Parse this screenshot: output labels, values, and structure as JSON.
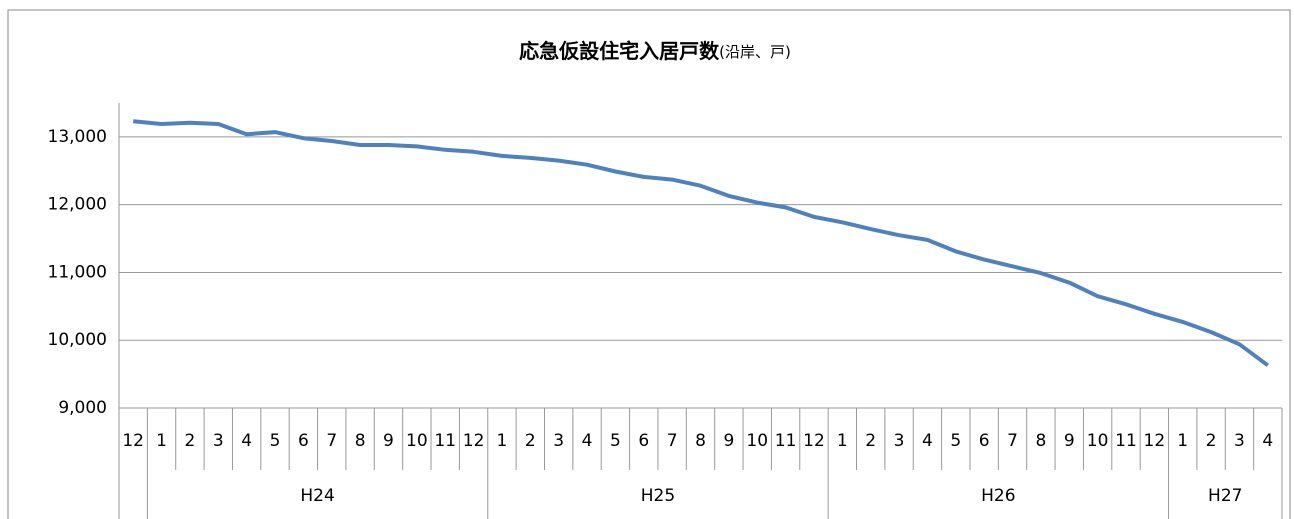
{
  "chart_data": {
    "type": "line",
    "title": "応急仮設住宅入居戸数",
    "title_unit": "(沿岸、戸)",
    "category_groups": [
      {
        "label": null,
        "categories": [
          "12"
        ]
      },
      {
        "label": "H24",
        "categories": [
          "1",
          "2",
          "3",
          "4",
          "5",
          "6",
          "7",
          "8",
          "9",
          "10",
          "11",
          "12"
        ]
      },
      {
        "label": "H25",
        "categories": [
          "1",
          "2",
          "3",
          "4",
          "5",
          "6",
          "7",
          "8",
          "9",
          "10",
          "11",
          "12"
        ]
      },
      {
        "label": "H26",
        "categories": [
          "1",
          "2",
          "3",
          "4",
          "5",
          "6",
          "7",
          "8",
          "9",
          "10",
          "11",
          "12"
        ]
      },
      {
        "label": "H27",
        "categories": [
          "1",
          "2",
          "3",
          "4"
        ]
      }
    ],
    "series": [
      {
        "name": null,
        "color": "#4f81bd",
        "values": [
          13230,
          13190,
          13210,
          13190,
          13040,
          13070,
          12980,
          12940,
          12880,
          12880,
          12860,
          12810,
          12780,
          12720,
          12690,
          12650,
          12590,
          12490,
          12410,
          12370,
          12280,
          12130,
          12030,
          11960,
          11820,
          11740,
          11640,
          11550,
          11480,
          11310,
          11190,
          11090,
          10990,
          10850,
          10650,
          10530,
          10390,
          10270,
          10120,
          9940,
          9630
        ]
      }
    ],
    "ylim": [
      9000,
      13500
    ],
    "yticks": [
      {
        "value": 9000,
        "label": "9,000"
      },
      {
        "value": 10000,
        "label": "10,000"
      },
      {
        "value": 11000,
        "label": "11,000"
      },
      {
        "value": 12000,
        "label": "12,000"
      },
      {
        "value": 13000,
        "label": "13,000"
      }
    ],
    "grid": true
  }
}
